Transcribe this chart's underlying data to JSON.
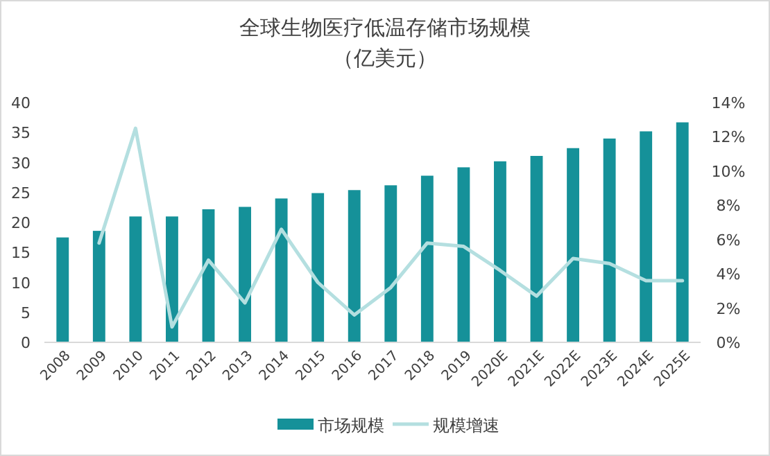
{
  "chart_data": {
    "type": "bar",
    "title": "全球生物医疗低温存储市场规模",
    "subtitle": "（亿美元）",
    "categories": [
      "2008",
      "2009",
      "2010",
      "2011",
      "2012",
      "2013",
      "2014",
      "2015",
      "2016",
      "2017",
      "2018",
      "2019",
      "2020E",
      "2021E",
      "2022E",
      "2023E",
      "2024E",
      "2025E"
    ],
    "series": [
      {
        "name": "市场规模",
        "color": "#159199",
        "values": [
          17.5,
          18.6,
          21,
          21,
          22.2,
          22.6,
          24,
          24.9,
          25.4,
          26.2,
          27.8,
          29.2,
          30.2,
          31.1,
          32.4,
          34,
          35.2,
          36.7
        ]
      },
      {
        "name": "规模增速",
        "type": "line",
        "axis": "y2",
        "color": "#b4dfe0",
        "values": [
          null,
          5.8,
          12.5,
          0.9,
          4.8,
          2.3,
          6.6,
          3.5,
          1.6,
          3.2,
          5.8,
          5.6,
          4.2,
          2.7,
          4.9,
          4.6,
          3.6,
          3.6
        ]
      }
    ],
    "ylim": [
      0,
      40
    ],
    "yticks": [
      0,
      5,
      10,
      15,
      20,
      25,
      30,
      35,
      40
    ],
    "y2lim": [
      0,
      14
    ],
    "y2ticks": [
      {
        "value": 0,
        "label": "0%"
      },
      {
        "value": 2,
        "label": "2%"
      },
      {
        "value": 4,
        "label": "4%"
      },
      {
        "value": 6,
        "label": "6%"
      },
      {
        "value": 8,
        "label": "8%"
      },
      {
        "value": 10,
        "label": "10%"
      },
      {
        "value": 12,
        "label": "12%"
      },
      {
        "value": 14,
        "label": "14%"
      }
    ],
    "grid": false,
    "legend": "bottom"
  }
}
